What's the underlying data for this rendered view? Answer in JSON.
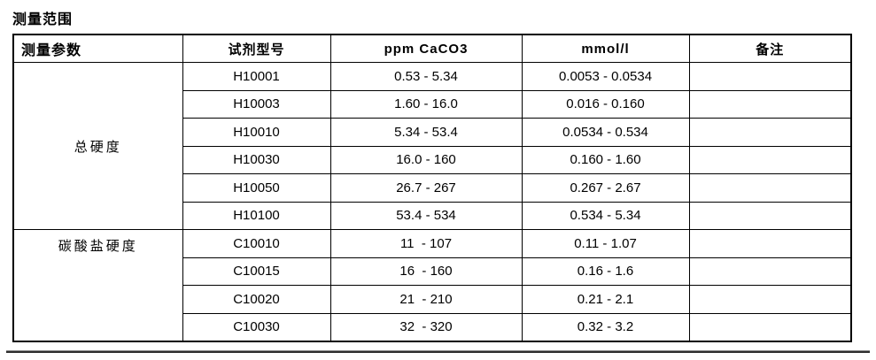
{
  "page": {
    "title": "测量范围"
  },
  "table": {
    "headers": [
      "测量参数",
      "试剂型号",
      "ppm CaCO3",
      "mmol/l",
      "备注"
    ],
    "groups": [
      {
        "parameter": "总硬度",
        "rows": [
          {
            "model": "H10001",
            "ppm": "0.53 - 5.34",
            "mmol": "0.0053 - 0.0534",
            "note": ""
          },
          {
            "model": "H10003",
            "ppm": "1.60 - 16.0",
            "mmol": "0.016 - 0.160",
            "note": ""
          },
          {
            "model": "H10010",
            "ppm": "5.34 - 53.4",
            "mmol": "0.0534 - 0.534",
            "note": ""
          },
          {
            "model": "H10030",
            "ppm": "16.0 - 160",
            "mmol": "0.160 - 1.60",
            "note": ""
          },
          {
            "model": "H10050",
            "ppm": "26.7 - 267",
            "mmol": "0.267 - 2.67",
            "note": ""
          },
          {
            "model": "H10100",
            "ppm": "53.4 - 534",
            "mmol": "0.534 - 5.34",
            "note": ""
          }
        ]
      },
      {
        "parameter": "碳酸盐硬度",
        "rows": [
          {
            "model": "C10010",
            "ppm": "11  - 107",
            "mmol": "0.11 - 1.07",
            "note": ""
          },
          {
            "model": "C10015",
            "ppm": "16  - 160",
            "mmol": "0.16 - 1.6",
            "note": ""
          },
          {
            "model": "C10020",
            "ppm": "21  - 210",
            "mmol": "0.21 - 2.1",
            "note": ""
          },
          {
            "model": "C10030",
            "ppm": "32  - 320",
            "mmol": "0.32 - 3.2",
            "note": ""
          }
        ]
      }
    ]
  },
  "colors": {
    "text": "#000000",
    "border": "#000000",
    "background": "#ffffff",
    "footer_rule": "#2e2e2e"
  }
}
